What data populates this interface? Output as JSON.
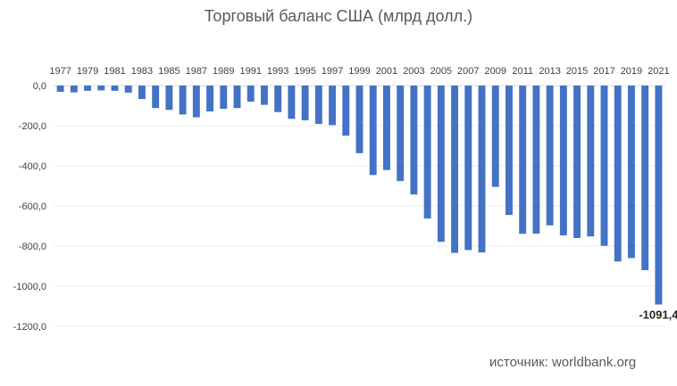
{
  "chart_data": {
    "type": "bar",
    "title": "Торговый баланс США (млрд долл.)",
    "xlabel": "",
    "ylabel": "",
    "categories": [
      "1977",
      "1978",
      "1979",
      "1980",
      "1981",
      "1982",
      "1983",
      "1984",
      "1985",
      "1986",
      "1987",
      "1988",
      "1989",
      "1990",
      "1991",
      "1992",
      "1993",
      "1994",
      "1995",
      "1996",
      "1997",
      "1998",
      "1999",
      "2000",
      "2001",
      "2002",
      "2003",
      "2004",
      "2005",
      "2006",
      "2007",
      "2008",
      "2009",
      "2010",
      "2011",
      "2012",
      "2013",
      "2014",
      "2015",
      "2016",
      "2017",
      "2018",
      "2019",
      "2020",
      "2021"
    ],
    "x_tick_labels": [
      "1977",
      "1979",
      "1981",
      "1983",
      "1985",
      "1987",
      "1989",
      "1991",
      "1993",
      "1995",
      "1997",
      "1999",
      "2001",
      "2003",
      "2005",
      "2007",
      "2009",
      "2011",
      "2013",
      "2015",
      "2017",
      "2019",
      "2021"
    ],
    "values": [
      -31,
      -34,
      -26,
      -24,
      -26,
      -35,
      -67,
      -112,
      -121,
      -144,
      -158,
      -129,
      -116,
      -112,
      -80,
      -96,
      -132,
      -166,
      -173,
      -191,
      -197,
      -250,
      -337,
      -446,
      -421,
      -476,
      -543,
      -663,
      -779,
      -834,
      -820,
      -832,
      -505,
      -645,
      -739,
      -738,
      -697,
      -747,
      -760,
      -752,
      -799,
      -877,
      -860,
      -920,
      -1091.4
    ],
    "ylim": [
      -1200,
      0
    ],
    "y_ticks": [
      "0,0",
      "-200,0",
      "-400,0",
      "-600,0",
      "-800,0",
      "-1000,0",
      "-1200,0"
    ],
    "y_tick_values": [
      0,
      -200,
      -400,
      -600,
      -800,
      -1000,
      -1200
    ],
    "data_label": {
      "category": "2021",
      "text": "-1091,4"
    },
    "grid": true,
    "bar_color": "#4472C4"
  },
  "source_note": "источник: worldbank.org"
}
